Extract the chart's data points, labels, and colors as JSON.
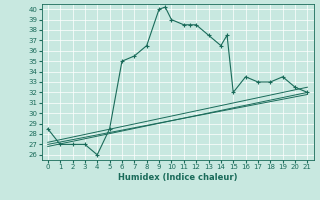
{
  "xlabel": "Humidex (Indice chaleur)",
  "ylabel": "",
  "bg_color": "#c8e8e0",
  "line_color": "#1a6b5a",
  "xlim": [
    -0.5,
    21.5
  ],
  "ylim": [
    25.5,
    40.5
  ],
  "xticks": [
    0,
    1,
    2,
    3,
    4,
    5,
    6,
    7,
    8,
    9,
    10,
    11,
    12,
    13,
    14,
    15,
    16,
    17,
    18,
    19,
    20,
    21
  ],
  "yticks": [
    26,
    27,
    28,
    29,
    30,
    31,
    32,
    33,
    34,
    35,
    36,
    37,
    38,
    39,
    40
  ],
  "main_line_x": [
    0,
    1,
    2,
    3,
    4,
    5,
    6,
    7,
    8,
    9,
    9.5,
    10,
    11,
    11.5,
    12,
    13,
    14,
    14.5,
    15,
    16,
    17,
    18,
    19,
    20,
    21
  ],
  "main_line_y": [
    28.5,
    27,
    27,
    27,
    26,
    28.5,
    35,
    35.5,
    36.5,
    40,
    40.2,
    39,
    38.5,
    38.5,
    38.5,
    37.5,
    36.5,
    37.5,
    32,
    33.5,
    33,
    33,
    33.5,
    32.5,
    32
  ],
  "line1_x": [
    0,
    21
  ],
  "line1_y": [
    27.2,
    32.5
  ],
  "line2_x": [
    0,
    21
  ],
  "line2_y": [
    27.0,
    31.8
  ],
  "line3_x": [
    0,
    21
  ],
  "line3_y": [
    26.8,
    32.0
  ]
}
